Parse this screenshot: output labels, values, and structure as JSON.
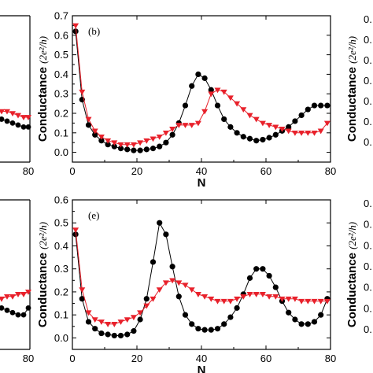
{
  "chart_data": [
    {
      "panel": "(b)",
      "type": "line",
      "ylabel": "Conductance",
      "yunit": "(2e²/h)",
      "xlabel": "N",
      "xlim": [
        0,
        80
      ],
      "ylim": [
        -0.05,
        0.7
      ],
      "xticks": [
        0,
        20,
        40,
        60,
        80
      ],
      "yticks": [
        0.0,
        0.1,
        0.2,
        0.3,
        0.4,
        0.5,
        0.6,
        0.7
      ],
      "colors": {
        "black": "#000000",
        "red": "#e8212b"
      },
      "series": [
        {
          "marker": "circle",
          "color": "#000000",
          "x": [
            1,
            3,
            5,
            7,
            9,
            11,
            13,
            15,
            17,
            19,
            21,
            23,
            25,
            27,
            29,
            31,
            33,
            35,
            37,
            39,
            41,
            43,
            45,
            47,
            49,
            51,
            53,
            55,
            57,
            59,
            61,
            63,
            65,
            67,
            69,
            71,
            73,
            75,
            77,
            79
          ],
          "y": [
            0.62,
            0.27,
            0.14,
            0.09,
            0.06,
            0.04,
            0.03,
            0.02,
            0.015,
            0.01,
            0.01,
            0.015,
            0.02,
            0.03,
            0.05,
            0.09,
            0.15,
            0.24,
            0.34,
            0.4,
            0.38,
            0.32,
            0.24,
            0.17,
            0.13,
            0.1,
            0.08,
            0.07,
            0.06,
            0.065,
            0.075,
            0.09,
            0.11,
            0.13,
            0.16,
            0.19,
            0.22,
            0.24,
            0.24,
            0.24
          ]
        },
        {
          "marker": "triangle-down",
          "color": "#e8212b",
          "x": [
            1,
            3,
            5,
            7,
            9,
            11,
            13,
            15,
            17,
            19,
            21,
            23,
            25,
            27,
            29,
            31,
            33,
            35,
            37,
            39,
            41,
            43,
            45,
            47,
            49,
            51,
            53,
            55,
            57,
            59,
            61,
            63,
            65,
            67,
            69,
            71,
            73,
            75,
            77,
            79
          ],
          "y": [
            0.65,
            0.31,
            0.17,
            0.11,
            0.08,
            0.06,
            0.05,
            0.04,
            0.04,
            0.04,
            0.05,
            0.06,
            0.07,
            0.08,
            0.1,
            0.12,
            0.14,
            0.14,
            0.14,
            0.15,
            0.21,
            0.3,
            0.32,
            0.31,
            0.28,
            0.25,
            0.22,
            0.19,
            0.17,
            0.15,
            0.14,
            0.13,
            0.12,
            0.11,
            0.1,
            0.1,
            0.1,
            0.1,
            0.11,
            0.15
          ]
        }
      ]
    },
    {
      "panel": "(e)",
      "type": "line",
      "ylabel": "Conductance",
      "yunit": "(2e²/h)",
      "xlabel": "N",
      "xlim": [
        0,
        80
      ],
      "ylim": [
        -0.05,
        0.6
      ],
      "xticks": [
        0,
        20,
        40,
        60,
        80
      ],
      "yticks": [
        0.0,
        0.1,
        0.2,
        0.3,
        0.4,
        0.5,
        0.6
      ],
      "colors": {
        "black": "#000000",
        "red": "#e8212b"
      },
      "series": [
        {
          "marker": "circle",
          "color": "#000000",
          "x": [
            1,
            3,
            5,
            7,
            9,
            11,
            13,
            15,
            17,
            19,
            21,
            23,
            25,
            27,
            29,
            31,
            33,
            35,
            37,
            39,
            41,
            43,
            45,
            47,
            49,
            51,
            53,
            55,
            57,
            59,
            61,
            63,
            65,
            67,
            69,
            71,
            73,
            75,
            77,
            79
          ],
          "y": [
            0.45,
            0.17,
            0.07,
            0.04,
            0.02,
            0.015,
            0.01,
            0.01,
            0.015,
            0.03,
            0.08,
            0.17,
            0.33,
            0.5,
            0.45,
            0.31,
            0.18,
            0.1,
            0.06,
            0.04,
            0.035,
            0.035,
            0.04,
            0.06,
            0.09,
            0.13,
            0.19,
            0.26,
            0.3,
            0.3,
            0.27,
            0.22,
            0.16,
            0.11,
            0.08,
            0.06,
            0.06,
            0.07,
            0.1,
            0.17
          ]
        },
        {
          "marker": "triangle-down",
          "color": "#e8212b",
          "x": [
            1,
            3,
            5,
            7,
            9,
            11,
            13,
            15,
            17,
            19,
            21,
            23,
            25,
            27,
            29,
            31,
            33,
            35,
            37,
            39,
            41,
            43,
            45,
            47,
            49,
            51,
            53,
            55,
            57,
            59,
            61,
            63,
            65,
            67,
            69,
            71,
            73,
            75,
            77,
            79
          ],
          "y": [
            0.47,
            0.21,
            0.11,
            0.08,
            0.07,
            0.06,
            0.06,
            0.07,
            0.08,
            0.09,
            0.11,
            0.14,
            0.17,
            0.21,
            0.24,
            0.25,
            0.24,
            0.23,
            0.21,
            0.19,
            0.18,
            0.17,
            0.16,
            0.16,
            0.16,
            0.17,
            0.18,
            0.19,
            0.19,
            0.19,
            0.18,
            0.18,
            0.17,
            0.17,
            0.17,
            0.16,
            0.16,
            0.16,
            0.16,
            0.16
          ]
        }
      ]
    }
  ],
  "left_partial": {
    "xtick": "80",
    "top_curve_black": [
      0.17,
      0.16,
      0.15,
      0.14,
      0.13,
      0.13
    ],
    "top_curve_red": [
      0.21,
      0.21,
      0.2,
      0.19,
      0.18,
      0.18
    ],
    "bot_curve_black": [
      0.13,
      0.12,
      0.11,
      0.1,
      0.1,
      0.13
    ],
    "bot_curve_red": [
      0.17,
      0.18,
      0.18,
      0.19,
      0.19,
      0.2
    ]
  },
  "right_partial": {
    "ylabel": "Conductance",
    "yunit": "(2e²/h)",
    "top_ticks": [
      "0.",
      "0.",
      "0.",
      "0.",
      "0.",
      "0.",
      "0."
    ],
    "bot_ticks": [
      "0.",
      "0.",
      "0.",
      "0.",
      "0.",
      "0.",
      "0."
    ]
  }
}
